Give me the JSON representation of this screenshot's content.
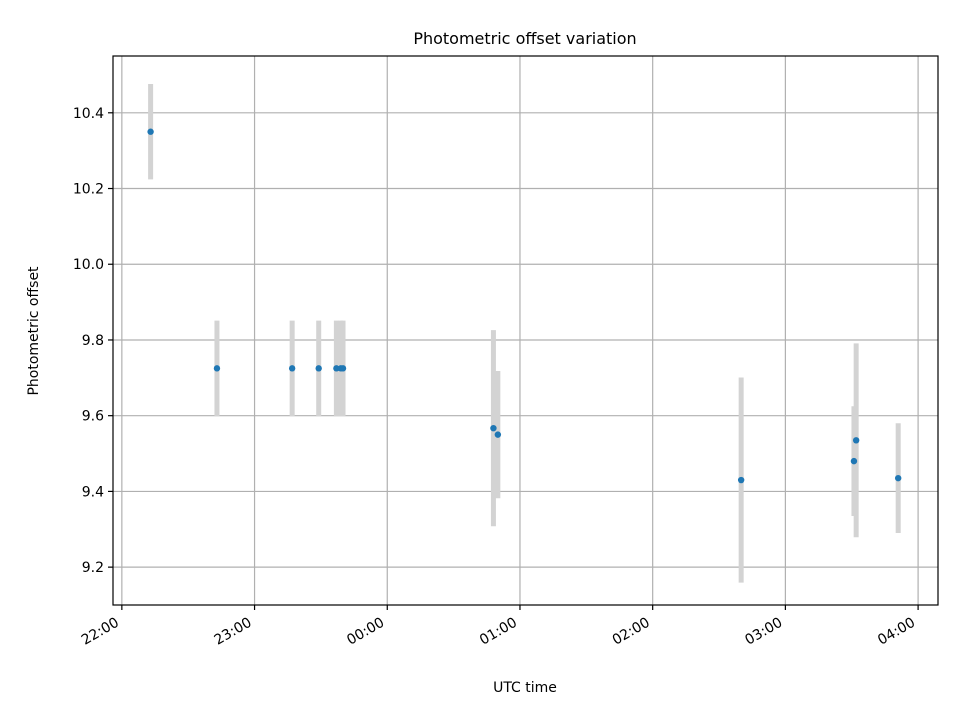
{
  "chart_data": {
    "type": "scatter",
    "title": "Photometric offset variation",
    "xlabel": "UTC time",
    "ylabel": "Photometric offset",
    "x_ticks": [
      "22:00",
      "23:00",
      "00:00",
      "01:00",
      "02:00",
      "03:00",
      "04:00"
    ],
    "y_ticks": [
      "9.2",
      "9.4",
      "9.6",
      "9.8",
      "10.0",
      "10.2",
      "10.4"
    ],
    "xlim": [
      "21:56",
      "04:09"
    ],
    "ylim": [
      9.1,
      10.55
    ],
    "grid": true,
    "marker_color": "#1f77b4",
    "errorbar_color": "#d3d3d3",
    "points": [
      {
        "t": "22:13",
        "y": 10.35,
        "err": 0.126
      },
      {
        "t": "22:43",
        "y": 9.725,
        "err": 0.126
      },
      {
        "t": "23:17",
        "y": 9.725,
        "err": 0.126
      },
      {
        "t": "23:29",
        "y": 9.725,
        "err": 0.126
      },
      {
        "t": "23:37",
        "y": 9.725,
        "err": 0.126
      },
      {
        "t": "23:39",
        "y": 9.725,
        "err": 0.126
      },
      {
        "t": "23:40",
        "y": 9.725,
        "err": 0.126
      },
      {
        "t": "00:48",
        "y": 9.567,
        "err": 0.259
      },
      {
        "t": "00:50",
        "y": 9.55,
        "err": 0.168
      },
      {
        "t": "02:40",
        "y": 9.43,
        "err": 0.271
      },
      {
        "t": "03:31",
        "y": 9.48,
        "err": 0.145
      },
      {
        "t": "03:32",
        "y": 9.535,
        "err": 0.256
      },
      {
        "t": "03:51",
        "y": 9.435,
        "err": 0.145
      }
    ]
  }
}
